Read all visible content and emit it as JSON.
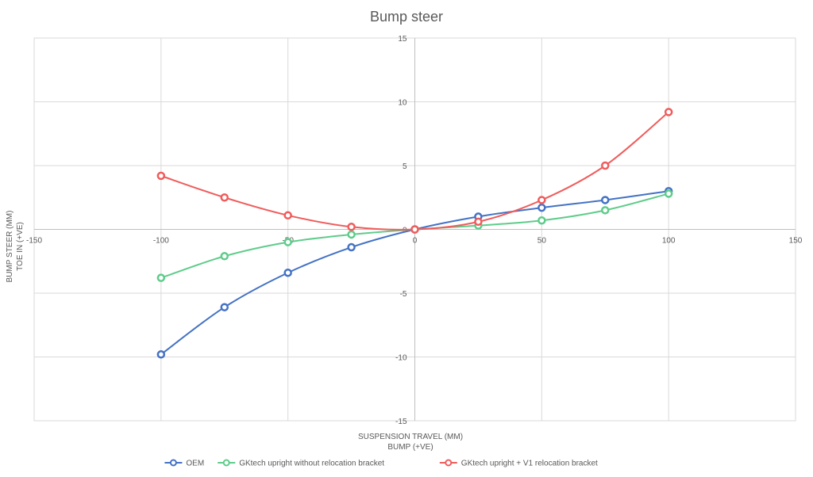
{
  "chart_data": {
    "type": "scatter",
    "title": "Bump steer",
    "xlabel": [
      "SUSPENSION TRAVEL (MM)",
      "BUMP (+VE)"
    ],
    "ylabel": [
      "BUMP STEER (MM)",
      "TOE IN (+VE)"
    ],
    "xlim": [
      -150,
      150
    ],
    "ylim": [
      -15,
      15
    ],
    "xticks": [
      -150,
      -100,
      -50,
      0,
      50,
      100,
      150
    ],
    "yticks": [
      15,
      10,
      5,
      0,
      -5,
      -10,
      -15
    ],
    "grid": true,
    "legend_position": "bottom",
    "series": [
      {
        "name": "OEM",
        "color": "#4472C4",
        "x": [
          -100,
          -75,
          -50,
          -25,
          0,
          25,
          50,
          75,
          100
        ],
        "y": [
          -9.8,
          -6.1,
          -3.4,
          -1.4,
          0.0,
          1.0,
          1.7,
          2.3,
          3.0
        ]
      },
      {
        "name": "GKtech upright without relocation bracket",
        "color": "#5ECC8A",
        "x": [
          -100,
          -75,
          -50,
          -25,
          0,
          25,
          50,
          75,
          100
        ],
        "y": [
          -3.8,
          -2.1,
          -1.0,
          -0.4,
          0.0,
          0.3,
          0.7,
          1.5,
          2.8
        ]
      },
      {
        "name": "GKtech upright + V1 relocation bracket",
        "color": "#F05C5C",
        "x": [
          -100,
          -75,
          -50,
          -25,
          0,
          25,
          50,
          75,
          100
        ],
        "y": [
          4.2,
          2.5,
          1.1,
          0.2,
          0.0,
          0.6,
          2.3,
          5.0,
          9.2
        ]
      }
    ]
  }
}
